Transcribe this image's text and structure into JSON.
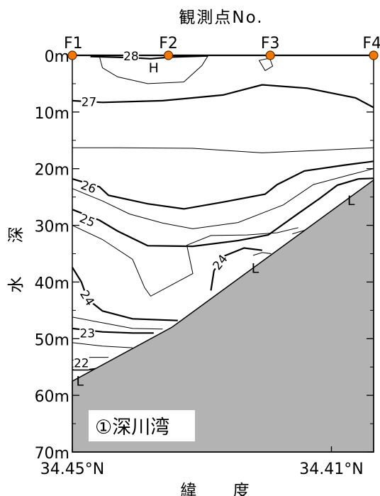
{
  "chart_data": {
    "type": "contour",
    "title": "観測点No.",
    "xlabel": "緯 度",
    "ylabel": "水 深",
    "panel_label": "①深川湾",
    "stations": [
      {
        "name": "F1",
        "x": 0.0
      },
      {
        "name": "F2",
        "x": 0.319
      },
      {
        "name": "F3",
        "x": 0.657
      },
      {
        "name": "F4",
        "x": 1.0
      }
    ],
    "x_tick_labels": [
      {
        "label": "34.45°N",
        "x": 0.0
      },
      {
        "label": "34.41°N",
        "x": 0.86
      }
    ],
    "y_ticks": [
      {
        "label": "0m",
        "depth": 0
      },
      {
        "label": "10m",
        "depth": 10
      },
      {
        "label": "20m",
        "depth": 20
      },
      {
        "label": "30m",
        "depth": 30
      },
      {
        "label": "40m",
        "depth": 40
      },
      {
        "label": "50m",
        "depth": 50
      },
      {
        "label": "60m",
        "depth": 60
      },
      {
        "label": "70m",
        "depth": 70
      }
    ],
    "ylim": [
      0,
      70
    ],
    "xlim": [
      0,
      1
    ],
    "seabed": [
      [
        0,
        57.5
      ],
      [
        0.33,
        48
      ],
      [
        1.0,
        22
      ]
    ],
    "contours": [
      {
        "level": 28,
        "major": true,
        "points": [
          [
            0.06,
            0.2
          ],
          [
            0.19,
            0.4
          ],
          [
            0.26,
            0.6
          ],
          [
            0.33,
            0.3
          ],
          [
            0.45,
            0.1
          ]
        ]
      },
      {
        "level": 27.5,
        "major": false,
        "points": [
          [
            0.09,
            0.2
          ],
          [
            0.1,
            2.2
          ],
          [
            0.15,
            3.8
          ],
          [
            0.25,
            5.0
          ],
          [
            0.37,
            4.7
          ],
          [
            0.43,
            1.8
          ],
          [
            0.45,
            0.1
          ]
        ]
      },
      {
        "level": 27,
        "major": true,
        "points": [
          [
            0.0,
            8.0
          ],
          [
            0.1,
            8.3
          ],
          [
            0.3,
            8.0
          ],
          [
            0.5,
            7.0
          ],
          [
            0.63,
            5.2
          ],
          [
            0.78,
            5.8
          ],
          [
            0.94,
            7.5
          ],
          [
            1.0,
            9.2
          ]
        ]
      },
      {
        "level": 26.5,
        "major": false,
        "points": [
          [
            0.0,
            16.3
          ],
          [
            0.15,
            16.3
          ],
          [
            0.4,
            16.4
          ],
          [
            0.63,
            17.2
          ],
          [
            0.8,
            16.8
          ],
          [
            1.0,
            16.3
          ]
        ]
      },
      {
        "level": 26,
        "major": true,
        "points": [
          [
            0.0,
            21.8
          ],
          [
            0.09,
            23.2
          ],
          [
            0.12,
            24.7
          ],
          [
            0.25,
            26.2
          ],
          [
            0.37,
            27.1
          ],
          [
            0.5,
            25.9
          ],
          [
            0.64,
            24.5
          ],
          [
            0.68,
            22.8
          ],
          [
            0.77,
            20.4
          ],
          [
            0.9,
            19.4
          ],
          [
            1.0,
            18.7
          ]
        ]
      },
      {
        "level": 25.8,
        "major": false,
        "points": [
          [
            0.0,
            23.5
          ],
          [
            0.1,
            25.7
          ],
          [
            0.19,
            28.0
          ],
          [
            0.3,
            29.6
          ],
          [
            0.4,
            30.6
          ],
          [
            0.55,
            29.5
          ],
          [
            0.7,
            26.4
          ],
          [
            0.8,
            22.8
          ],
          [
            0.92,
            21.1
          ],
          [
            1.0,
            20.0
          ]
        ]
      },
      {
        "level": 25,
        "major": true,
        "points": [
          [
            0.0,
            27.2
          ],
          [
            0.09,
            29.1
          ],
          [
            0.15,
            31.0
          ],
          [
            0.25,
            33.6
          ],
          [
            0.4,
            33.7
          ],
          [
            0.55,
            32.7
          ],
          [
            0.65,
            31.7
          ],
          [
            0.75,
            27.9
          ],
          [
            0.82,
            25.3
          ],
          [
            0.88,
            22.9
          ],
          [
            0.95,
            21.8
          ],
          [
            1.0,
            21.7
          ]
        ]
      },
      {
        "level": 24.5,
        "major": false,
        "points": [
          [
            0.0,
            30.0
          ],
          [
            0.1,
            32.5
          ],
          [
            0.2,
            36.0
          ],
          [
            0.24,
            41.0
          ],
          [
            0.26,
            42.5
          ],
          [
            0.33,
            40.5
          ],
          [
            0.4,
            38.5
          ],
          [
            0.38,
            33.5
          ],
          [
            0.46,
            31.8
          ],
          [
            0.58,
            31.7
          ],
          [
            0.68,
            31.3
          ],
          [
            0.75,
            30.4
          ]
        ]
      },
      {
        "level": 24,
        "major": true,
        "points": [
          [
            0.0,
            37.4
          ],
          [
            0.03,
            40.0
          ],
          [
            0.05,
            43.0
          ],
          [
            0.1,
            45.1
          ],
          [
            0.2,
            46.5
          ],
          [
            0.35,
            46.8
          ]
        ]
      },
      {
        "level": 24,
        "major": true,
        "points": [
          [
            0.46,
            41.5
          ],
          [
            0.47,
            38.0
          ],
          [
            0.5,
            35.5
          ],
          [
            0.57,
            34.0
          ],
          [
            0.63,
            34.4
          ]
        ]
      },
      {
        "level": 23.8,
        "major": false,
        "points": [
          [
            0.0,
            46.2
          ],
          [
            0.1,
            47.2
          ],
          [
            0.2,
            48.2
          ],
          [
            0.3,
            48.3
          ]
        ]
      },
      {
        "level": 23.5,
        "major": true,
        "points": [
          [
            0.0,
            48.2
          ],
          [
            0.1,
            48.8
          ],
          [
            0.2,
            49.0
          ],
          [
            0.27,
            49.0
          ]
        ]
      },
      {
        "level": 23,
        "major": false,
        "points": [
          [
            0.0,
            50.7
          ],
          [
            0.1,
            51.3
          ],
          [
            0.2,
            51.6
          ]
        ]
      },
      {
        "level": 22.5,
        "major": false,
        "points": [
          [
            0.0,
            53.8
          ],
          [
            0.06,
            53.3
          ],
          [
            0.12,
            53.3
          ]
        ]
      },
      {
        "level": 22,
        "major": true,
        "points": [
          [
            0.0,
            55.5
          ],
          [
            0.05,
            55.5
          ],
          [
            0.08,
            55.3
          ]
        ]
      },
      {
        "level": 22,
        "major": false,
        "points": [
          [
            0.6,
            35.3
          ],
          [
            0.63,
            34.8
          ],
          [
            0.66,
            35.0
          ]
        ]
      },
      {
        "level": 21.5,
        "major": false,
        "points": [
          [
            0.73,
            31.5
          ],
          [
            0.8,
            30.4
          ],
          [
            0.88,
            28.8
          ],
          [
            0.92,
            25.6
          ],
          [
            0.95,
            24.1
          ],
          [
            1.0,
            23.7
          ]
        ]
      }
    ],
    "contour_labels": [
      {
        "text": "28",
        "x": 0.195,
        "depth": 0.1,
        "rotate": 0
      },
      {
        "text": "27",
        "x": 0.055,
        "depth": 8.2,
        "rotate": 0
      },
      {
        "text": "26",
        "x": 0.054,
        "depth": 23.2,
        "rotate": 20
      },
      {
        "text": "25",
        "x": 0.05,
        "depth": 29.1,
        "rotate": 22
      },
      {
        "text": "24",
        "x": 0.05,
        "depth": 42.8,
        "rotate": 58
      },
      {
        "text": "24",
        "x": 0.49,
        "depth": 36.5,
        "rotate": -52
      },
      {
        "text": "23",
        "x": 0.05,
        "depth": 49.0,
        "rotate": 0
      },
      {
        "text": "22",
        "x": 0.03,
        "depth": 54.3,
        "rotate": 0
      }
    ],
    "markers": [
      {
        "text": "H",
        "x": 0.27,
        "depth": 2.0
      },
      {
        "text": "L",
        "x": 0.025,
        "depth": 57.3
      },
      {
        "text": "L",
        "x": 0.607,
        "depth": 37.4
      },
      {
        "text": "L",
        "x": 0.925,
        "depth": 25.4
      }
    ]
  }
}
